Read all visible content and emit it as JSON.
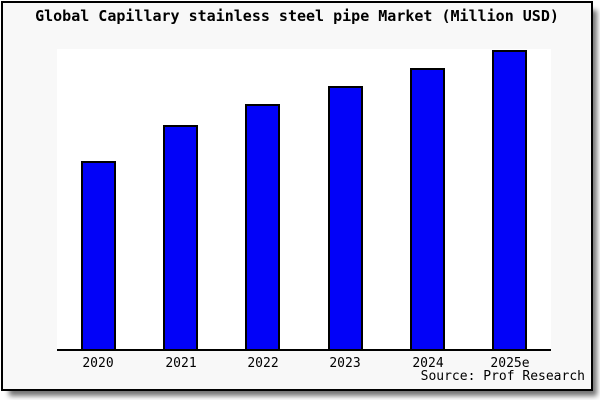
{
  "page": {
    "background": "#ffffff",
    "frame_background": "#f8f8f8",
    "frame_border_color": "#000000"
  },
  "chart_data": {
    "type": "bar",
    "title": "Global Capillary stainless steel pipe Market (Million USD)",
    "categories": [
      "2020",
      "2021",
      "2022",
      "2023",
      "2024",
      "2025e"
    ],
    "values": [
      63,
      75,
      82,
      88,
      94,
      100
    ],
    "values_note": "Relative estimates from bar heights; no numeric y-axis is shown. 2025e normalized to 100.",
    "xlabel": "",
    "ylabel": "",
    "ylim": [
      0,
      100.5
    ],
    "grid": false,
    "legend": false,
    "bar_color": "#0202f8",
    "bar_border_color": "#000000",
    "plot_background": "#ffffff",
    "source": "Source: Prof Research"
  }
}
